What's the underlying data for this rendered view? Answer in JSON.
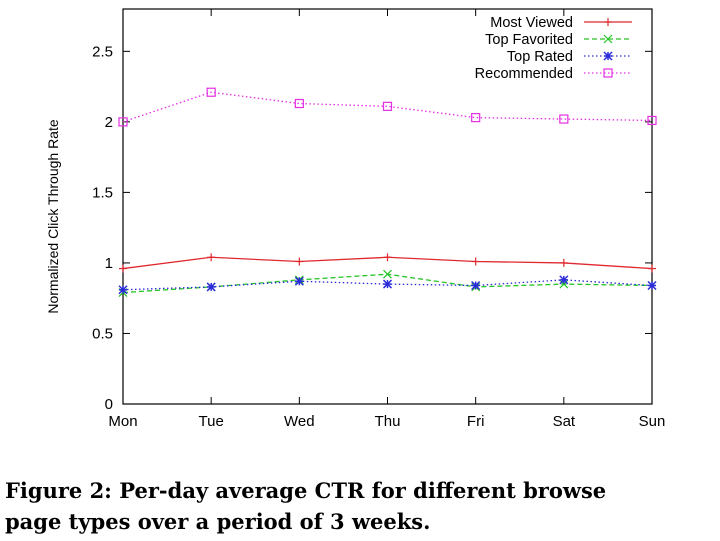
{
  "caption": {
    "label": "Figure 2:",
    "line1": "Per-day average CTR for different browse",
    "line2": "page types over a period of 3 weeks."
  },
  "chart_data": {
    "type": "line",
    "ylabel": "Normalized Click Through Rate",
    "xlabel": "",
    "categories": [
      "Mon",
      "Tue",
      "Wed",
      "Thu",
      "Fri",
      "Sat",
      "Sun"
    ],
    "ylim": [
      0,
      2.8
    ],
    "yticks": [
      0,
      0.5,
      1,
      1.5,
      2,
      2.5
    ],
    "ytick_labels": [
      "0",
      "0.5",
      "1",
      "1.5",
      "2",
      "2.5"
    ],
    "grid": false,
    "legend_position": "top-right",
    "series": [
      {
        "name": "Most Viewed",
        "color": "#e0282e",
        "dash": "solid",
        "marker": "plus",
        "values": [
          0.96,
          1.04,
          1.01,
          1.04,
          1.01,
          1.0,
          0.96
        ]
      },
      {
        "name": "Top Favorited",
        "color": "#26c426",
        "dash": "dashed",
        "marker": "x",
        "values": [
          0.79,
          0.83,
          0.88,
          0.92,
          0.83,
          0.85,
          0.84
        ]
      },
      {
        "name": "Top Rated",
        "color": "#2b2bd9",
        "dash": "dotted",
        "marker": "star",
        "values": [
          0.81,
          0.83,
          0.87,
          0.85,
          0.84,
          0.88,
          0.84
        ]
      },
      {
        "name": "Recommended",
        "color": "#e32ee3",
        "dash": "dotted",
        "marker": "square",
        "values": [
          2.0,
          2.21,
          2.13,
          2.11,
          2.03,
          2.02,
          2.01
        ]
      }
    ]
  }
}
